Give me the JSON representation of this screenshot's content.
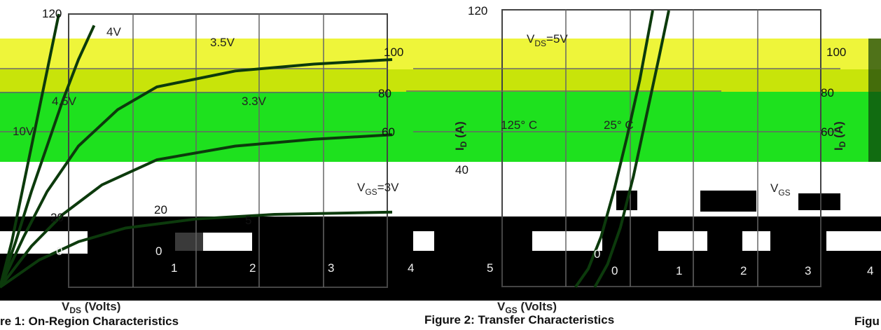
{
  "chart_data": [
    {
      "type": "line",
      "caption": "re 1: On-Region Characteristics",
      "xlabel": "V",
      "xlabel_sub": "DS",
      "xlabel_unit": " (Volts)",
      "x_ticks": [
        "0",
        "1",
        "2",
        "3",
        "4",
        "5"
      ],
      "y_ticks": [
        "120",
        "100",
        "80",
        "60",
        "40",
        "20",
        "0"
      ],
      "xlim": [
        0,
        5
      ],
      "ylim": [
        0,
        120
      ],
      "curve_labels": [
        "4V",
        "3.5V",
        "4.5V",
        "3.3V",
        "10V",
        "V",
        "=3V"
      ],
      "curve_label_sub": "GS",
      "series": [
        {
          "values": [
            [
              0.0,
              0
            ],
            [
              0.15,
              20
            ],
            [
              0.3,
              45
            ],
            [
              0.45,
              70
            ],
            [
              0.6,
              95
            ],
            [
              0.75,
              120
            ]
          ]
        },
        {
          "values": [
            [
              0.0,
              0
            ],
            [
              0.2,
              20
            ],
            [
              0.4,
              42
            ],
            [
              0.6,
              62
            ],
            [
              0.8,
              82
            ],
            [
              1.0,
              100
            ],
            [
              1.2,
              115
            ]
          ]
        },
        {
          "values": [
            [
              0.0,
              0
            ],
            [
              0.3,
              22
            ],
            [
              0.6,
              42
            ],
            [
              1.0,
              62
            ],
            [
              1.5,
              78
            ],
            [
              2.0,
              88
            ],
            [
              3.0,
              95
            ],
            [
              4.0,
              98
            ],
            [
              5.0,
              100
            ]
          ]
        },
        {
          "values": [
            [
              0.0,
              0
            ],
            [
              0.4,
              18
            ],
            [
              0.8,
              32
            ],
            [
              1.3,
              45
            ],
            [
              2.0,
              56
            ],
            [
              3.0,
              62
            ],
            [
              4.0,
              65
            ],
            [
              5.0,
              67
            ]
          ]
        },
        {
          "values": [
            [
              0.0,
              0
            ],
            [
              0.5,
              12
            ],
            [
              1.0,
              20
            ],
            [
              1.6,
              26
            ],
            [
              2.5,
              30
            ],
            [
              3.5,
              32
            ],
            [
              5.0,
              33
            ]
          ]
        }
      ]
    },
    {
      "type": "line",
      "caption": "Figure 2: Transfer Characteristics",
      "xlabel": "V",
      "xlabel_sub": "GS",
      "xlabel_unit": " (Volts)",
      "ylabel": "I",
      "ylabel_sub": "D",
      "ylabel_unit": " (A)",
      "x_ticks": [
        "0",
        "1",
        "2",
        "3",
        "4",
        "5"
      ],
      "y_ticks": [
        "120",
        "100",
        "80",
        "60",
        "40",
        "20",
        "0"
      ],
      "xlim": [
        0,
        5
      ],
      "ylim": [
        0,
        120
      ],
      "annotations": [
        "V",
        "=5V",
        "125° C",
        "25° C"
      ],
      "annotation_sub": "DS",
      "series": [
        {
          "name": "125° C",
          "values": [
            [
              2.3,
              0
            ],
            [
              2.5,
              8
            ],
            [
              2.7,
              22
            ],
            [
              2.9,
              42
            ],
            [
              3.1,
              65
            ],
            [
              3.3,
              90
            ],
            [
              3.5,
              120
            ]
          ]
        },
        {
          "name": "25° C",
          "values": [
            [
              2.6,
              0
            ],
            [
              2.8,
              10
            ],
            [
              3.0,
              26
            ],
            [
              3.2,
              48
            ],
            [
              3.4,
              74
            ],
            [
              3.6,
              100
            ],
            [
              3.75,
              120
            ]
          ]
        }
      ]
    }
  ],
  "partial": {
    "caption": "Figu",
    "ylabel": "I",
    "ylabel_sub": "D",
    "ylabel_unit": " (A)",
    "y_ticks": [
      "100",
      "80",
      "60"
    ],
    "x_ticks": [
      "0",
      "1",
      "2",
      "3",
      "4"
    ],
    "annotation": "V",
    "annotation_sub": "GS"
  },
  "colors": {
    "yellow_band": "#eef53a",
    "olive_band": "#c8e40a",
    "green_band": "#1ee11e",
    "curve": "#0c3a0c",
    "black": "#000000",
    "white": "#ffffff"
  }
}
